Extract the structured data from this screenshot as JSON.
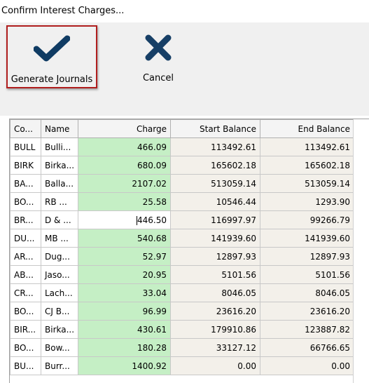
{
  "window": {
    "title": "Confirm Interest Charges..."
  },
  "toolbar": {
    "generate_label": "Generate Journals",
    "cancel_label": "Cancel"
  },
  "colors": {
    "check": "#0f3b63",
    "cancel_x": "#173f66",
    "highlight_border": "#b01e1e",
    "charge_cell": "#c5efc5",
    "readonly_cell": "#f3f0ea"
  },
  "table": {
    "columns": [
      {
        "key": "code",
        "label": "Co..."
      },
      {
        "key": "name",
        "label": "Name"
      },
      {
        "key": "charge",
        "label": "Charge"
      },
      {
        "key": "start",
        "label": "Start Balance"
      },
      {
        "key": "end",
        "label": "End Balance"
      }
    ],
    "rows": [
      {
        "code": "BULL",
        "name": "Bulli...",
        "charge": "466.09",
        "start": "113492.61",
        "end": "113492.61"
      },
      {
        "code": "BIRK",
        "name": "Birka...",
        "charge": "680.09",
        "start": "165602.18",
        "end": "165602.18"
      },
      {
        "code": "BA...",
        "name": "Balla...",
        "charge": "2107.02",
        "start": "513059.14",
        "end": "513059.14"
      },
      {
        "code": "BO...",
        "name": "RB ...",
        "charge": "25.58",
        "start": "10546.44",
        "end": "1293.90"
      },
      {
        "code": "BR...",
        "name": "D & ...",
        "charge": "446.50",
        "start": "116997.97",
        "end": "99266.79",
        "editing": true
      },
      {
        "code": "DU...",
        "name": "MB ...",
        "charge": "540.68",
        "start": "141939.60",
        "end": "141939.60"
      },
      {
        "code": "AR...",
        "name": "Dug...",
        "charge": "52.97",
        "start": "12897.93",
        "end": "12897.93"
      },
      {
        "code": "AB...",
        "name": "Jaso...",
        "charge": "20.95",
        "start": "5101.56",
        "end": "5101.56"
      },
      {
        "code": "CR...",
        "name": "Lach...",
        "charge": "33.04",
        "start": "8046.05",
        "end": "8046.05"
      },
      {
        "code": "BO...",
        "name": "CJ B...",
        "charge": "96.99",
        "start": "23616.20",
        "end": "23616.20"
      },
      {
        "code": "BIR...",
        "name": "Birka...",
        "charge": "430.61",
        "start": "179910.86",
        "end": "123887.82"
      },
      {
        "code": "BO...",
        "name": "Bow...",
        "charge": "180.28",
        "start": "33127.12",
        "end": "66766.65"
      },
      {
        "code": "BU...",
        "name": "Burr...",
        "charge": "1400.92",
        "start": "0.00",
        "end": "0.00"
      }
    ]
  }
}
